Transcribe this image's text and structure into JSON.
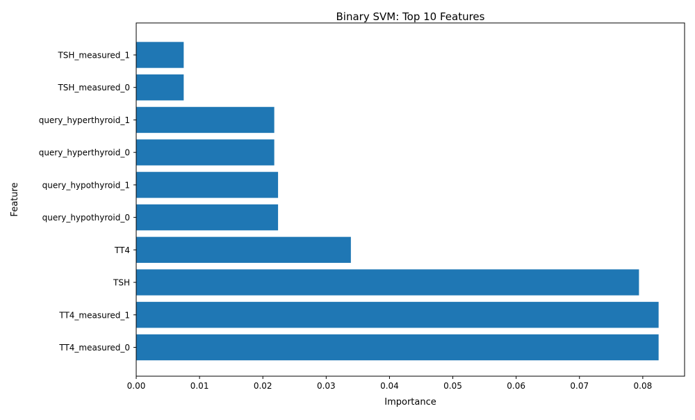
{
  "chart_data": {
    "type": "bar",
    "orientation": "horizontal",
    "title": "Binary SVM: Top 10 Features",
    "xlabel": "Importance",
    "ylabel": "Feature",
    "categories": [
      "TT4_measured_0",
      "TT4_measured_1",
      "TSH",
      "TT4",
      "query_hypothyroid_0",
      "query_hypothyroid_1",
      "query_hyperthyroid_0",
      "query_hyperthyroid_1",
      "TSH_measured_0",
      "TSH_measured_1"
    ],
    "values": [
      0.0825,
      0.0825,
      0.0794,
      0.0339,
      0.0224,
      0.0224,
      0.0218,
      0.0218,
      0.0075,
      0.0075
    ],
    "xlim": [
      0,
      0.0866
    ],
    "xticks": [
      0.0,
      0.01,
      0.02,
      0.03,
      0.04,
      0.05,
      0.06,
      0.07,
      0.08
    ],
    "xtick_labels": [
      "0.00",
      "0.01",
      "0.02",
      "0.03",
      "0.04",
      "0.05",
      "0.06",
      "0.07",
      "0.08"
    ],
    "grid": false,
    "bar_color": "#1f77b4"
  }
}
